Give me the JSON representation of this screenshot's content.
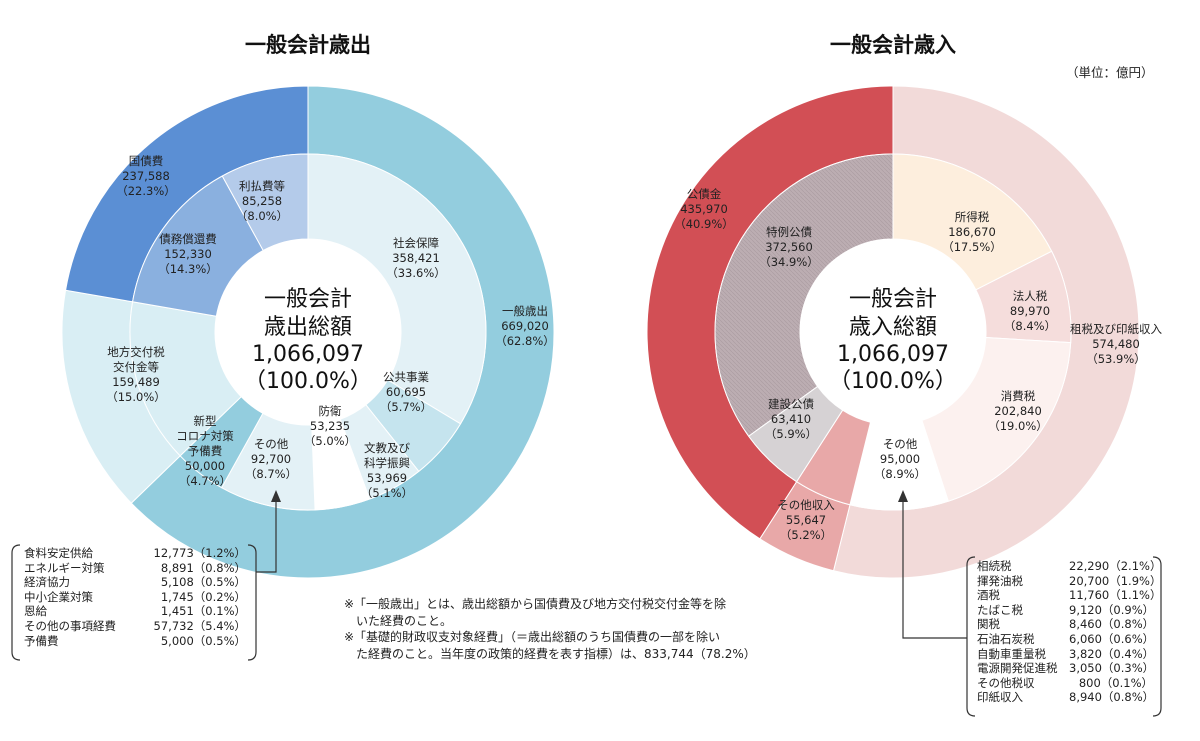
{
  "unit": "（単位：億円）",
  "chart_data": [
    {
      "type": "pie",
      "title": "一般会計歳出",
      "center_label": [
        "一般会計",
        "歳出総額",
        "1,066,097",
        "（100.0%）"
      ],
      "outer_ring": [
        {
          "name": "一般歳出",
          "value": 669020,
          "percent": 62.8,
          "value_text": "669,020",
          "pct_text": "（62.8%）",
          "color": "#93cdde"
        },
        {
          "name": "地方交付税交付金等",
          "name_lines": [
            "地方交付税",
            "交付金等"
          ],
          "value": 159489,
          "percent": 15.0,
          "value_text": "159,489",
          "pct_text": "（15.0%）",
          "color": "#d9eef4"
        },
        {
          "name": "国債費",
          "value": 237588,
          "percent": 22.3,
          "value_text": "237,588",
          "pct_text": "（22.3%）",
          "color": "#5b8fd4"
        }
      ],
      "inner_ring": [
        {
          "name": "社会保障",
          "value": 358421,
          "percent": 33.6,
          "value_text": "358,421",
          "pct_text": "（33.6%）",
          "color": "#e3f1f6"
        },
        {
          "name": "公共事業",
          "value": 60695,
          "percent": 5.7,
          "value_text": "60,695",
          "pct_text": "（5.7%）",
          "color": "#c5e4ee"
        },
        {
          "name": "文教及び科学振興",
          "name_lines": [
            "文教及び",
            "科学振興"
          ],
          "value": 53969,
          "percent": 5.1,
          "value_text": "53,969",
          "pct_text": "（5.1%）",
          "color": "#e3f1f6"
        },
        {
          "name": "防衛",
          "value": 53235,
          "percent": 5.0,
          "value_text": "53,235",
          "pct_text": "（5.0%）",
          "color": "#ffffff"
        },
        {
          "name": "その他",
          "value": 92700,
          "percent": 8.7,
          "value_text": "92,700",
          "pct_text": "（8.7%）",
          "color": "#e3f1f6"
        },
        {
          "name": "新型コロナ対策予備費",
          "name_lines": [
            "新型",
            "コロナ対策",
            "予備費"
          ],
          "value": 50000,
          "percent": 4.7,
          "value_text": "50,000",
          "pct_text": "（4.7%）",
          "color": "#93cdde"
        },
        {
          "name": "地方交付税交付金等",
          "value": 159489,
          "percent": 15.0,
          "color": "#d9eef4"
        },
        {
          "name": "債務償還費",
          "value": 152330,
          "percent": 14.3,
          "value_text": "152,330",
          "pct_text": "（14.3%）",
          "color": "#8ab0df"
        },
        {
          "name": "利払費等",
          "value": 85258,
          "percent": 8.0,
          "value_text": "85,258",
          "pct_text": "（8.0%）",
          "color": "#b4cbea"
        }
      ],
      "breakdown": [
        {
          "name": "食料安定供給",
          "value": "12,773（1.2%）"
        },
        {
          "name": "エネルギー対策",
          "value": "8,891（0.8%）"
        },
        {
          "name": "経済協力",
          "value": "5,108（0.5%）"
        },
        {
          "name": "中小企業対策",
          "value": "1,745（0.2%）"
        },
        {
          "name": "恩給",
          "value": "1,451（0.1%）"
        },
        {
          "name": "その他の事項経費",
          "value": "57,732（5.4%）"
        },
        {
          "name": "予備費",
          "value": "5,000（0.5%）"
        }
      ]
    },
    {
      "type": "pie",
      "title": "一般会計歳入",
      "center_label": [
        "一般会計",
        "歳入総額",
        "1,066,097",
        "（100.0%）"
      ],
      "outer_ring": [
        {
          "name": "租税及び印紙収入",
          "value": 574480,
          "percent": 53.9,
          "value_text": "574,480",
          "pct_text": "（53.9%）",
          "color": "#f2dad9"
        },
        {
          "name": "その他収入",
          "value": 55647,
          "percent": 5.2,
          "value_text": "55,647",
          "pct_text": "（5.2%）",
          "color": "#e8a8a8"
        },
        {
          "name": "公債金",
          "value": 435970,
          "percent": 40.9,
          "value_text": "435,970",
          "pct_text": "（40.9%）",
          "color": "#d24f55"
        }
      ],
      "inner_ring": [
        {
          "name": "所得税",
          "value": 186670,
          "percent": 17.5,
          "value_text": "186,670",
          "pct_text": "（17.5%）",
          "color": "#fdeedd"
        },
        {
          "name": "法人税",
          "value": 89970,
          "percent": 8.4,
          "value_text": "89,970",
          "pct_text": "（8.4%）",
          "color": "#f5dddc"
        },
        {
          "name": "消費税",
          "value": 202840,
          "percent": 19.0,
          "value_text": "202,840",
          "pct_text": "（19.0%）",
          "color": "#fcf1ef"
        },
        {
          "name": "その他",
          "value": 95000,
          "percent": 8.9,
          "value_text": "95,000",
          "pct_text": "（8.9%）",
          "color": "#ffffff"
        },
        {
          "name": "その他収入",
          "value": 55647,
          "percent": 5.2,
          "color": "#e8a8a8"
        },
        {
          "name": "建設公債",
          "value": 63410,
          "percent": 5.9,
          "value_text": "63,410",
          "pct_text": "（5.9%）",
          "color": "#d6d2d4"
        },
        {
          "name": "特例公債",
          "value": 372560,
          "percent": 34.9,
          "value_text": "372,560",
          "pct_text": "（34.9%）",
          "color": "#bcadb2"
        }
      ],
      "breakdown": [
        {
          "name": "相続税",
          "value": "22,290（2.1%）"
        },
        {
          "name": "揮発油税",
          "value": "20,700（1.9%）"
        },
        {
          "name": "酒税",
          "value": "11,760（1.1%）"
        },
        {
          "name": "たばこ税",
          "value": "9,120（0.9%）"
        },
        {
          "name": "関税",
          "value": "8,460（0.8%）"
        },
        {
          "name": "石油石炭税",
          "value": "6,060（0.6%）"
        },
        {
          "name": "自動車重量税",
          "value": "3,820（0.4%）"
        },
        {
          "name": "電源開発促進税",
          "value": "3,050（0.3%）"
        },
        {
          "name": "その他税収",
          "value": "800（0.1%）"
        },
        {
          "name": "印紙収入",
          "value": "8,940（0.8%）"
        }
      ]
    }
  ],
  "notes": [
    "※「一般歳出」とは、歳出総額から国債費及び地方交付税交付金等を除",
    "　いた経費のこと。",
    "※「基礎的財政収支対象経費」（＝歳出総額のうち国債費の一部を除い",
    "　た経費のこと。当年度の政策的経費を表す指標）は、833,744（78.2%）"
  ]
}
